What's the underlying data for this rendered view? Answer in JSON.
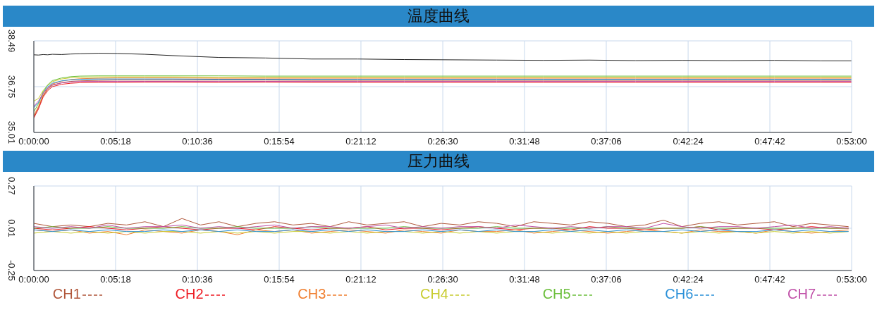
{
  "chart_data": [
    {
      "type": "line",
      "title": "温度曲线",
      "grid": true,
      "x": [
        0,
        0.005,
        0.01,
        0.015,
        0.02,
        0.03,
        0.04,
        0.05,
        0.07,
        0.09,
        0.12,
        0.15,
        0.2,
        0.25,
        0.3,
        0.35,
        0.4,
        0.45,
        0.5,
        0.55,
        0.6,
        0.65,
        0.7,
        0.75,
        0.8,
        0.85,
        0.883
      ],
      "xlim": [
        0,
        0.8833
      ],
      "xticks": [
        {
          "value": 0,
          "label": "0:00:00"
        },
        {
          "value": 0.0883,
          "label": "0:05:18"
        },
        {
          "value": 0.1767,
          "label": "0:10:36"
        },
        {
          "value": 0.265,
          "label": "0:15:54"
        },
        {
          "value": 0.3533,
          "label": "0:21:12"
        },
        {
          "value": 0.4417,
          "label": "0:26:30"
        },
        {
          "value": 0.53,
          "label": "0:31:48"
        },
        {
          "value": 0.6183,
          "label": "0:37:06"
        },
        {
          "value": 0.7067,
          "label": "0:42:24"
        },
        {
          "value": 0.795,
          "label": "0:47:42"
        },
        {
          "value": 0.8833,
          "label": "0:53:00"
        }
      ],
      "ylim": [
        35.01,
        38.49
      ],
      "yticks": [
        35.01,
        36.75,
        38.49
      ],
      "series": [
        {
          "color": "#222222",
          "values": [
            37.96,
            37.95,
            37.97,
            37.96,
            37.98,
            37.97,
            37.99,
            38.0,
            38.02,
            38.01,
            37.98,
            37.93,
            37.86,
            37.84,
            37.8,
            37.8,
            37.78,
            37.77,
            37.76,
            37.75,
            37.76,
            37.74,
            37.75,
            37.74,
            37.75,
            37.73,
            37.73
          ]
        },
        {
          "color": "#b0563a",
          "values": [
            35.6,
            35.95,
            36.4,
            36.65,
            36.8,
            36.9,
            36.95,
            36.97,
            36.99,
            37.0,
            37.0,
            37.0,
            37.0,
            37.0,
            36.99,
            36.99,
            36.99,
            36.99,
            36.99,
            36.99,
            36.99,
            36.99,
            36.99,
            36.99,
            36.99,
            36.99,
            36.99
          ]
        },
        {
          "color": "#ee1c24",
          "values": [
            35.56,
            35.9,
            36.35,
            36.6,
            36.75,
            36.84,
            36.88,
            36.9,
            36.91,
            36.91,
            36.92,
            36.92,
            36.91,
            36.92,
            36.91,
            36.91,
            36.91,
            36.91,
            36.91,
            36.91,
            36.91,
            36.91,
            36.91,
            36.91,
            36.91,
            36.91,
            36.91
          ]
        },
        {
          "color": "#f07f30",
          "values": [
            35.65,
            36.0,
            36.45,
            36.7,
            36.85,
            36.96,
            37.02,
            37.05,
            37.07,
            37.08,
            37.08,
            37.08,
            37.07,
            37.07,
            37.07,
            37.07,
            37.07,
            37.07,
            37.07,
            37.07,
            37.07,
            37.07,
            37.07,
            37.07,
            37.07,
            37.07,
            37.07
          ]
        },
        {
          "color": "#c8cc30",
          "values": [
            36.2,
            36.3,
            36.6,
            36.8,
            36.94,
            37.04,
            37.09,
            37.11,
            37.12,
            37.12,
            37.12,
            37.12,
            37.11,
            37.11,
            37.11,
            37.11,
            37.11,
            37.11,
            37.11,
            37.11,
            37.11,
            37.11,
            37.11,
            37.11,
            37.11,
            37.11,
            37.11
          ]
        },
        {
          "color": "#6cbf3c",
          "values": [
            35.8,
            36.1,
            36.55,
            36.82,
            36.98,
            37.08,
            37.13,
            37.15,
            37.16,
            37.16,
            37.16,
            37.16,
            37.16,
            37.15,
            37.15,
            37.15,
            37.15,
            37.15,
            37.15,
            37.15,
            37.15,
            37.15,
            37.15,
            37.15,
            37.15,
            37.15,
            37.15
          ]
        },
        {
          "color": "#2a90d8",
          "values": [
            35.95,
            36.15,
            36.5,
            36.75,
            36.88,
            36.97,
            37.01,
            37.03,
            37.04,
            37.04,
            37.04,
            37.04,
            37.03,
            37.03,
            37.03,
            37.03,
            37.03,
            37.03,
            37.03,
            37.03,
            37.03,
            37.03,
            37.03,
            37.03,
            37.03,
            37.03,
            37.03
          ]
        },
        {
          "color": "#c050a8",
          "values": [
            36.0,
            36.2,
            36.5,
            36.7,
            36.82,
            36.89,
            36.93,
            36.95,
            36.95,
            36.95,
            36.95,
            36.95,
            36.95,
            36.95,
            36.95,
            36.95,
            36.95,
            36.95,
            36.95,
            36.95,
            36.95,
            36.95,
            36.95,
            36.95,
            36.95,
            36.95,
            36.95
          ]
        }
      ]
    },
    {
      "type": "line",
      "title": "压力曲线",
      "grid": true,
      "legend": "bottom",
      "x": [
        0,
        0.02,
        0.04,
        0.06,
        0.08,
        0.1,
        0.12,
        0.14,
        0.16,
        0.18,
        0.2,
        0.22,
        0.24,
        0.26,
        0.28,
        0.3,
        0.32,
        0.34,
        0.36,
        0.38,
        0.4,
        0.42,
        0.44,
        0.46,
        0.48,
        0.5,
        0.52,
        0.54,
        0.56,
        0.58,
        0.6,
        0.62,
        0.64,
        0.66,
        0.68,
        0.7,
        0.72,
        0.74,
        0.76,
        0.78,
        0.8,
        0.82,
        0.84,
        0.86,
        0.88
      ],
      "xlim": [
        0,
        0.8833
      ],
      "xticks": [
        {
          "value": 0,
          "label": "0:00:00"
        },
        {
          "value": 0.0883,
          "label": "0:05:18"
        },
        {
          "value": 0.1767,
          "label": "0:10:36"
        },
        {
          "value": 0.265,
          "label": "0:15:54"
        },
        {
          "value": 0.3533,
          "label": "0:21:12"
        },
        {
          "value": 0.4417,
          "label": "0:26:30"
        },
        {
          "value": 0.53,
          "label": "0:31:48"
        },
        {
          "value": 0.6183,
          "label": "0:37:06"
        },
        {
          "value": 0.7067,
          "label": "0:42:24"
        },
        {
          "value": 0.795,
          "label": "0:47:42"
        },
        {
          "value": 0.8833,
          "label": "0:53:00"
        }
      ],
      "ylim": [
        -0.25,
        0.27
      ],
      "yticks": [
        -0.25,
        0.01,
        0.27
      ],
      "series": [
        {
          "name": "CH1",
          "color": "#b0563a",
          "values": [
            0.04,
            0.02,
            0.03,
            0.02,
            0.04,
            0.03,
            0.05,
            0.02,
            0.07,
            0.03,
            0.05,
            0.02,
            0.04,
            0.05,
            0.03,
            0.04,
            0.02,
            0.05,
            0.03,
            0.04,
            0.05,
            0.02,
            0.04,
            0.03,
            0.05,
            0.04,
            0.02,
            0.05,
            0.04,
            0.03,
            0.05,
            0.04,
            0.02,
            0.03,
            0.06,
            0.02,
            0.04,
            0.05,
            0.03,
            0.04,
            0.05,
            0.02,
            0.04,
            0.03,
            0.02
          ]
        },
        {
          "name": "CH2",
          "color": "#ee1c24",
          "values": [
            0.01,
            0.0,
            0.01,
            0.02,
            0.01,
            0.0,
            0.01,
            0.02,
            0.01,
            0.0,
            0.01,
            0.01,
            0.0,
            0.02,
            0.01,
            0.0,
            0.01,
            0.01,
            0.02,
            0.0,
            0.01,
            0.01,
            0.0,
            0.01,
            0.02,
            0.01,
            0.0,
            0.01,
            0.01,
            0.0,
            0.02,
            0.01,
            0.01,
            0.0,
            0.01,
            0.01,
            0.02,
            0.0,
            0.01,
            0.01,
            0.0,
            0.01,
            0.02,
            0.01,
            0.01
          ]
        },
        {
          "name": "CH3",
          "color": "#f07f30",
          "values": [
            0.0,
            -0.01,
            0.0,
            -0.02,
            -0.01,
            -0.03,
            0.0,
            -0.01,
            -0.02,
            0.0,
            -0.01,
            -0.03,
            0.0,
            -0.01,
            0.0,
            -0.02,
            -0.01,
            0.0,
            -0.01,
            -0.02,
            0.0,
            -0.01,
            -0.02,
            0.0,
            -0.01,
            -0.01,
            0.0,
            -0.02,
            -0.01,
            0.0,
            -0.01,
            -0.02,
            -0.01,
            0.0,
            -0.01,
            -0.02,
            0.0,
            -0.01,
            -0.01,
            -0.02,
            0.0,
            -0.01,
            -0.02,
            -0.01,
            0.0
          ]
        },
        {
          "name": "CH4",
          "color": "#c8cc30",
          "values": [
            -0.02,
            -0.01,
            -0.02,
            -0.01,
            -0.02,
            -0.01,
            -0.02,
            -0.01,
            -0.01,
            -0.02,
            -0.01,
            -0.02,
            -0.01,
            -0.02,
            -0.01,
            -0.01,
            -0.02,
            -0.01,
            -0.02,
            -0.01,
            -0.01,
            -0.02,
            -0.01,
            -0.02,
            -0.01,
            -0.02,
            -0.01,
            -0.01,
            -0.02,
            -0.01,
            -0.02,
            -0.01,
            -0.02,
            -0.01,
            -0.01,
            -0.02,
            -0.01,
            -0.02,
            -0.01,
            -0.02,
            -0.01,
            -0.02,
            -0.01,
            -0.02,
            -0.01
          ]
        },
        {
          "name": "CH5",
          "color": "#6cbf3c",
          "values": [
            0.01,
            0.02,
            0.01,
            0.01,
            0.02,
            0.01,
            0.01,
            0.01,
            0.02,
            0.01,
            0.01,
            0.02,
            0.01,
            0.01,
            0.01,
            0.02,
            0.01,
            0.01,
            0.01,
            0.01,
            0.02,
            0.01,
            0.01,
            0.01,
            0.01,
            0.02,
            0.01,
            0.01,
            0.01,
            0.01,
            0.01,
            0.02,
            0.01,
            0.01,
            0.01,
            0.01,
            0.02,
            0.01,
            0.01,
            0.01,
            0.01,
            0.01,
            0.01,
            0.01,
            0.01
          ]
        },
        {
          "name": "CH6",
          "color": "#2a90d8",
          "values": [
            0.0,
            -0.01,
            0.0,
            -0.01,
            0.0,
            -0.01,
            -0.01,
            0.0,
            -0.01,
            0.0,
            -0.01,
            0.0,
            -0.01,
            -0.01,
            0.0,
            -0.01,
            0.0,
            -0.01,
            0.0,
            -0.01,
            -0.01,
            0.0,
            -0.01,
            0.0,
            -0.01,
            0.0,
            -0.01,
            -0.01,
            0.0,
            -0.01,
            0.0,
            -0.01,
            0.0,
            -0.01,
            -0.01,
            0.0,
            -0.01,
            0.0,
            -0.01,
            -0.01,
            0.0,
            -0.01,
            0.0,
            -0.01,
            -0.01
          ]
        },
        {
          "name": "CH7",
          "color": "#c050a8",
          "values": [
            0.02,
            0.01,
            0.02,
            0.01,
            0.03,
            0.01,
            0.02,
            0.02,
            0.03,
            0.01,
            0.02,
            0.01,
            0.02,
            0.03,
            0.01,
            0.02,
            0.02,
            0.01,
            0.02,
            0.03,
            0.01,
            0.02,
            0.01,
            0.02,
            0.02,
            0.01,
            0.03,
            0.02,
            0.01,
            0.02,
            0.01,
            0.02,
            0.02,
            0.01,
            0.04,
            0.02,
            0.01,
            0.02,
            0.02,
            0.01,
            0.02,
            0.03,
            0.01,
            0.02,
            0.01
          ]
        }
      ]
    }
  ]
}
